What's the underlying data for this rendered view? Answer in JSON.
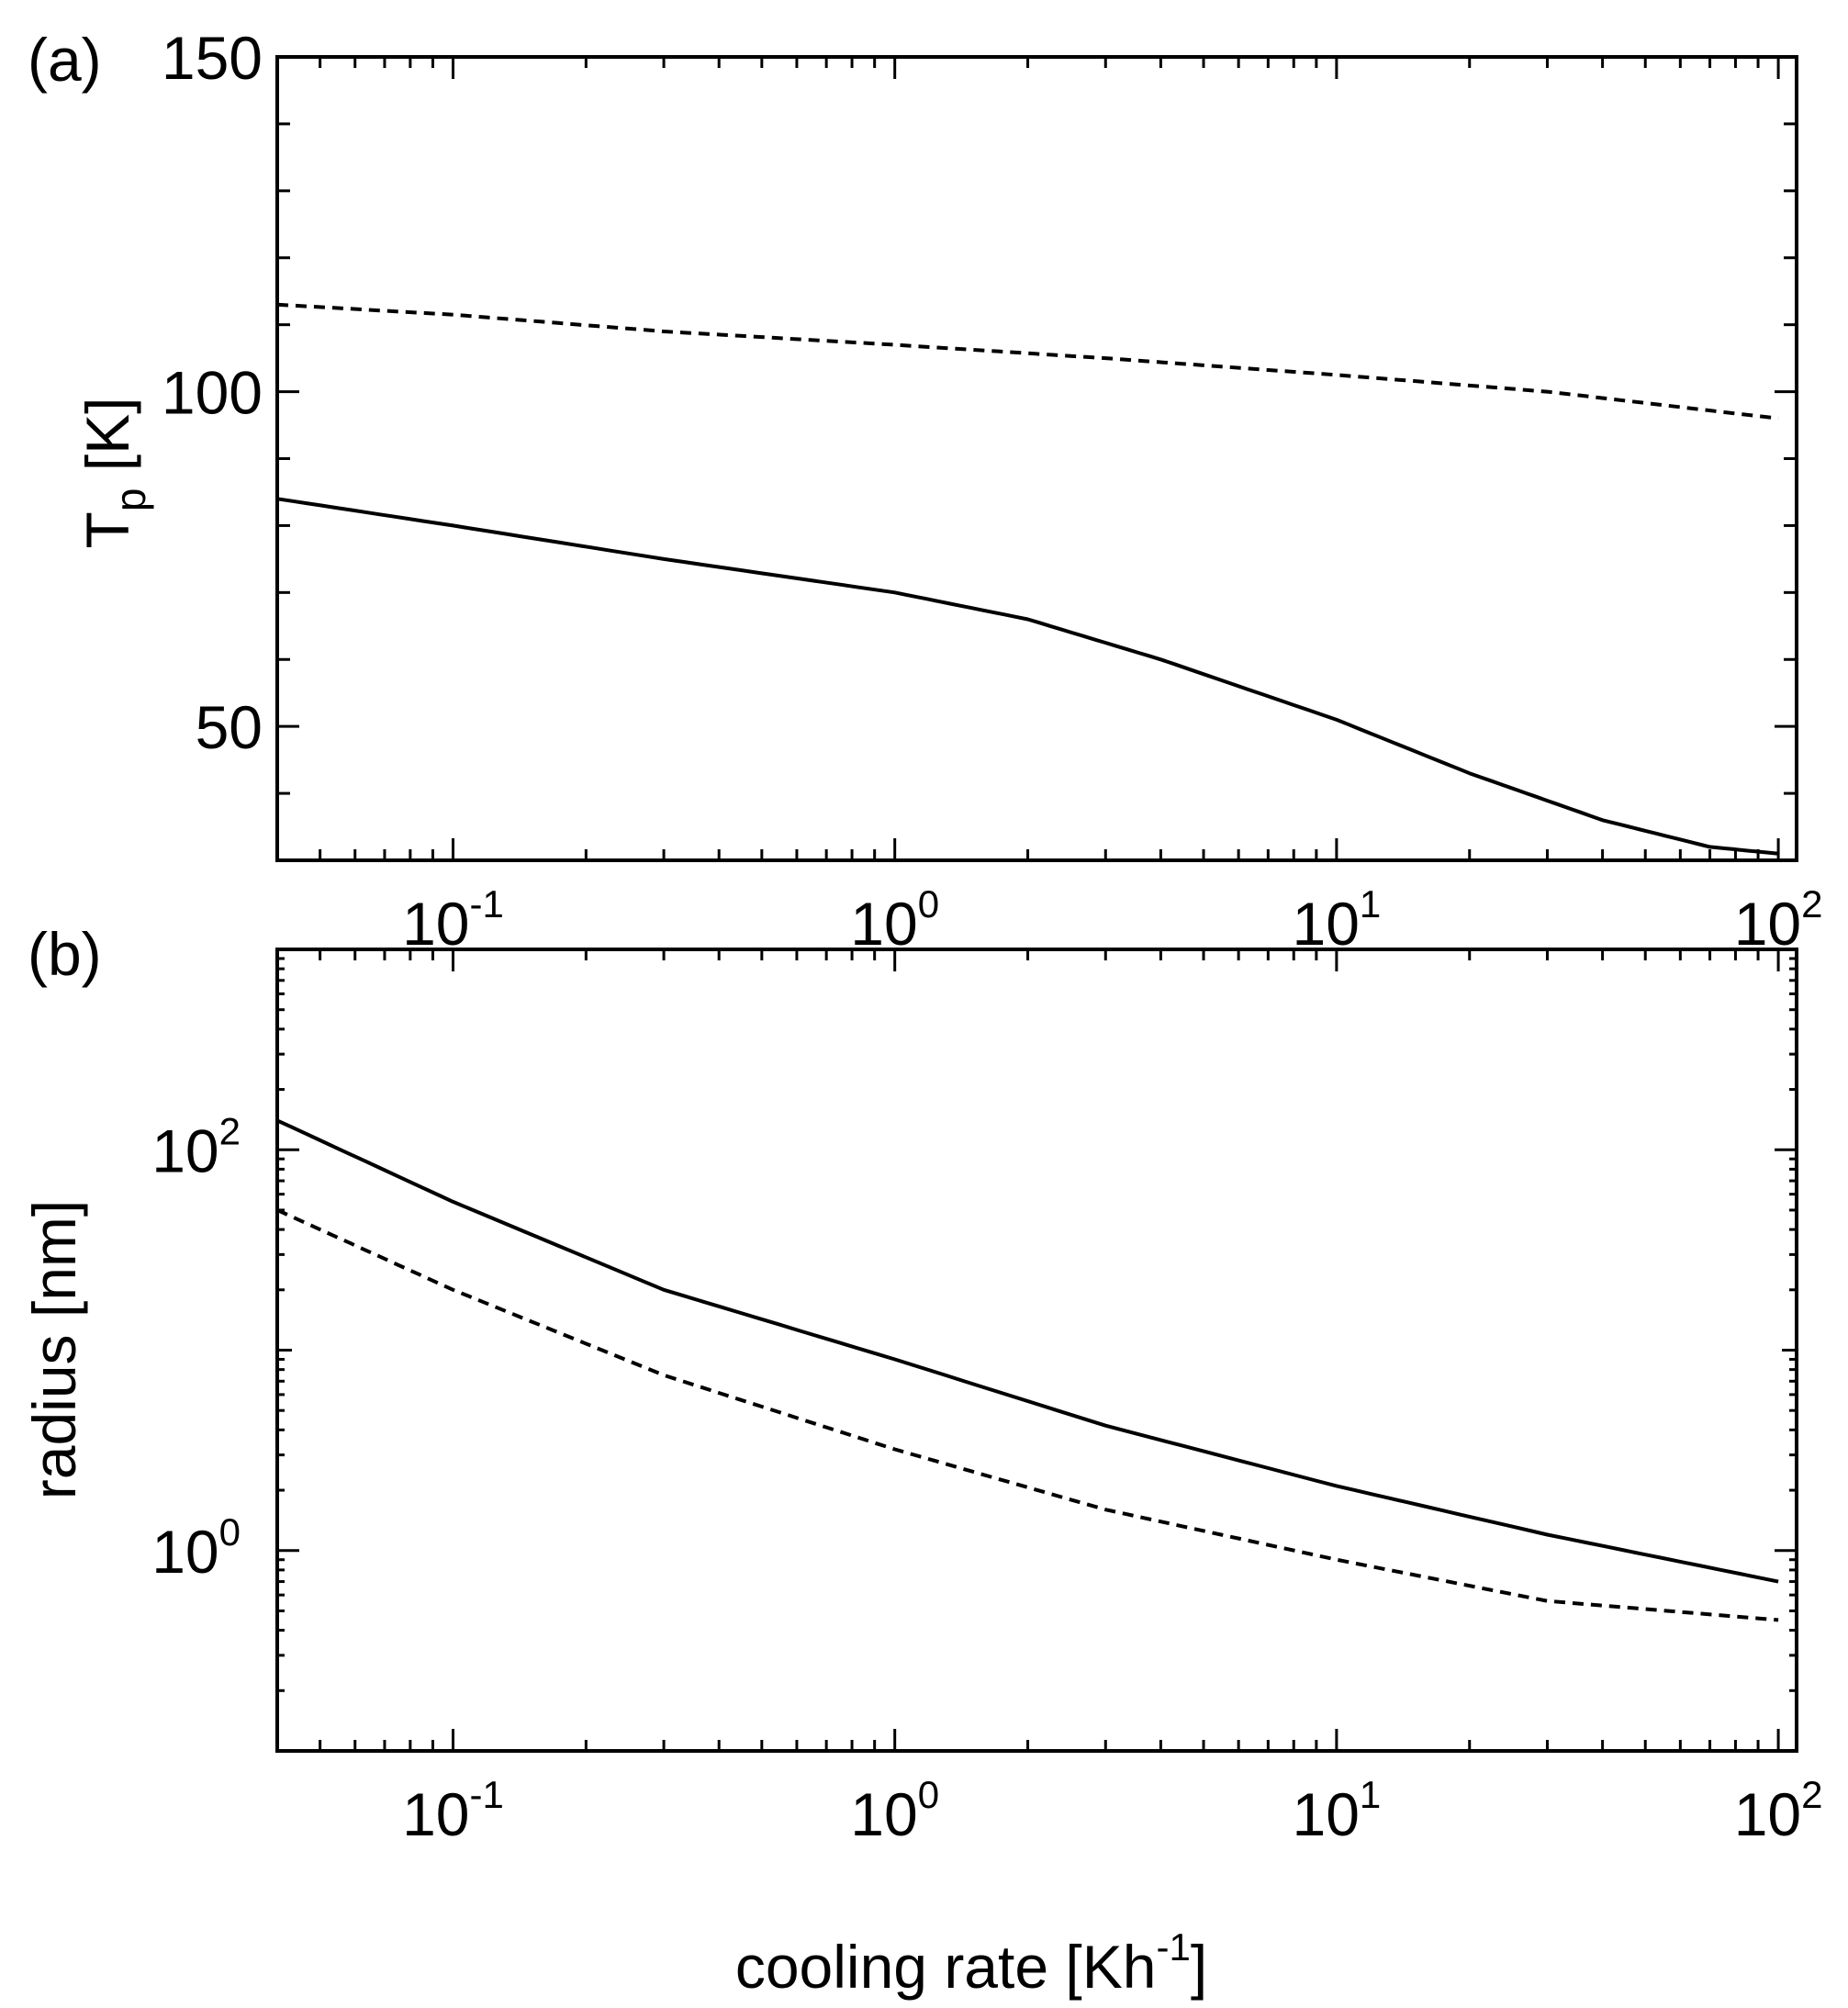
{
  "chart_data": [
    {
      "panel_label": "(a)",
      "type": "line",
      "xlabel": "",
      "ylabel": {
        "main": "T",
        "sub": "p",
        "unit": "[K]"
      },
      "xscale": "log",
      "yscale": "linear",
      "xlim": [
        0.04,
        110
      ],
      "ylim": [
        30,
        150
      ],
      "y_ticks": [
        {
          "value": 50,
          "label": "50"
        },
        {
          "value": 100,
          "label": "100"
        },
        {
          "value": 150,
          "label": "150"
        }
      ],
      "x_ticks": [
        {
          "value": 0.1,
          "base": "10",
          "exp": "-1"
        },
        {
          "value": 1,
          "base": "10",
          "exp": "0"
        },
        {
          "value": 10,
          "base": "10",
          "exp": "1"
        },
        {
          "value": 100,
          "base": "10",
          "exp": "2"
        }
      ],
      "series": [
        {
          "style": "solid",
          "x": [
            0.04,
            0.1,
            0.3,
            1,
            2,
            4,
            10,
            20,
            40,
            70,
            100
          ],
          "y": [
            84,
            80,
            75,
            70,
            66,
            60,
            51,
            43,
            36,
            32,
            31
          ]
        },
        {
          "style": "dashed",
          "x": [
            0.04,
            0.1,
            0.3,
            1,
            3,
            10,
            30,
            100
          ],
          "y": [
            113,
            111.5,
            109,
            107,
            105,
            102.5,
            100,
            96
          ]
        }
      ]
    },
    {
      "panel_label": "(b)",
      "type": "line",
      "xlabel": {
        "main": "cooling rate [Kh",
        "sup": "-1",
        "end": "]"
      },
      "ylabel": "radius [nm]",
      "xscale": "log",
      "yscale": "log",
      "xlim": [
        0.04,
        110
      ],
      "ylim": [
        0.1,
        1000
      ],
      "y_ticks": [
        {
          "value": 1,
          "base": "10",
          "exp": "0"
        },
        {
          "value": 100,
          "base": "10",
          "exp": "2"
        }
      ],
      "x_ticks": [
        {
          "value": 0.1,
          "base": "10",
          "exp": "-1"
        },
        {
          "value": 1,
          "base": "10",
          "exp": "0"
        },
        {
          "value": 10,
          "base": "10",
          "exp": "1"
        },
        {
          "value": 100,
          "base": "10",
          "exp": "2"
        }
      ],
      "series": [
        {
          "style": "solid",
          "x": [
            0.04,
            0.1,
            0.3,
            1,
            3,
            10,
            30,
            100
          ],
          "y": [
            140,
            55,
            20,
            9,
            4.2,
            2.1,
            1.2,
            0.7
          ]
        },
        {
          "style": "dashed",
          "x": [
            0.04,
            0.1,
            0.3,
            1,
            3,
            10,
            30,
            100
          ],
          "y": [
            50,
            20,
            7.5,
            3.2,
            1.6,
            0.9,
            0.56,
            0.45
          ]
        }
      ]
    }
  ]
}
